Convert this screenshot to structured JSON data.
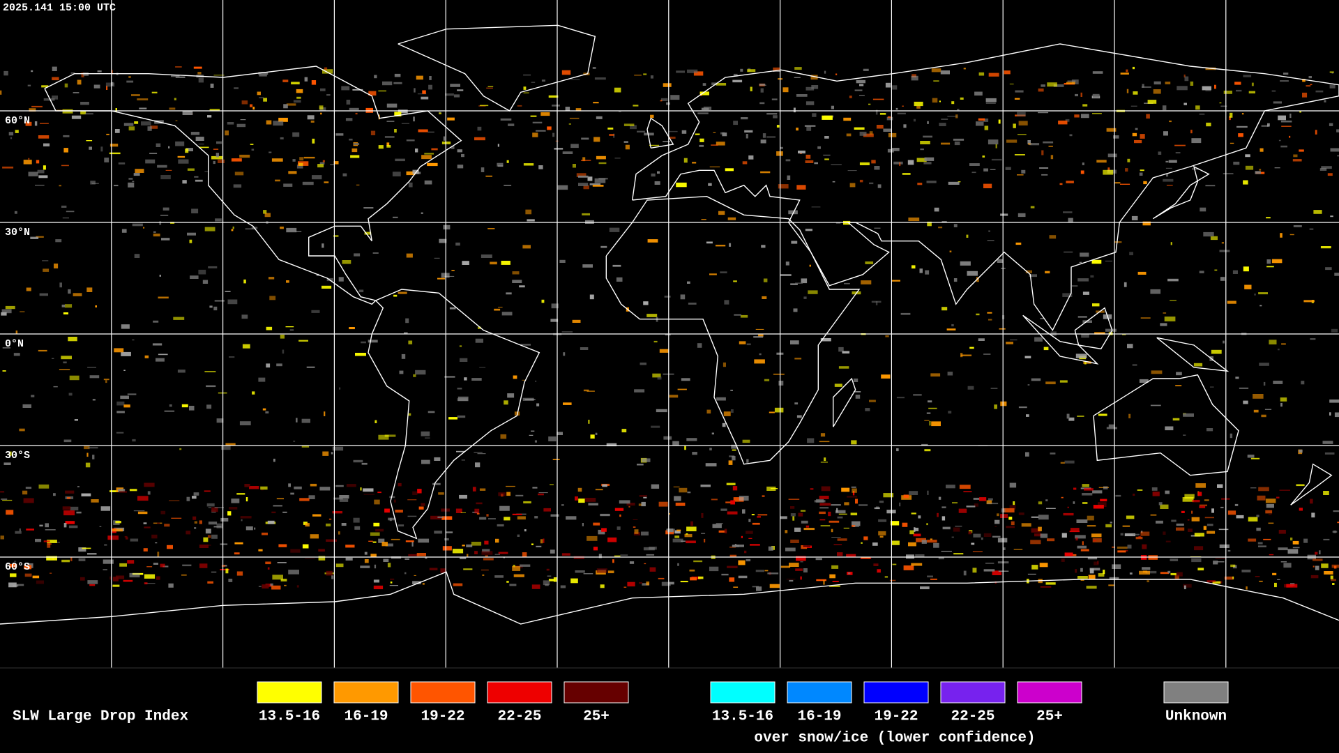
{
  "header": {
    "timestamp": "2025.141 15:00 UTC"
  },
  "map": {
    "latitude_labels": [
      "60°N",
      "30°N",
      "0°N",
      "30°S",
      "60°S"
    ]
  },
  "legend": {
    "title": "SLW Large Drop Index",
    "items": [
      {
        "label": "13.5-16",
        "color": "#ffff00"
      },
      {
        "label": "16-19",
        "color": "#ff9900"
      },
      {
        "label": "19-22",
        "color": "#ff5500"
      },
      {
        "label": "22-25",
        "color": "#ee0000"
      },
      {
        "label": "25+",
        "color": "#660000"
      }
    ],
    "snow_ice_items": [
      {
        "label": "13.5-16",
        "color": "#00ffff"
      },
      {
        "label": "16-19",
        "color": "#0088ff"
      },
      {
        "label": "19-22",
        "color": "#0000ff"
      },
      {
        "label": "22-25",
        "color": "#7722ee"
      },
      {
        "label": "25+",
        "color": "#cc00cc"
      }
    ],
    "snow_ice_caption": "over snow/ice (lower confidence)",
    "unknown": {
      "label": "Unknown",
      "color": "#808080"
    }
  }
}
